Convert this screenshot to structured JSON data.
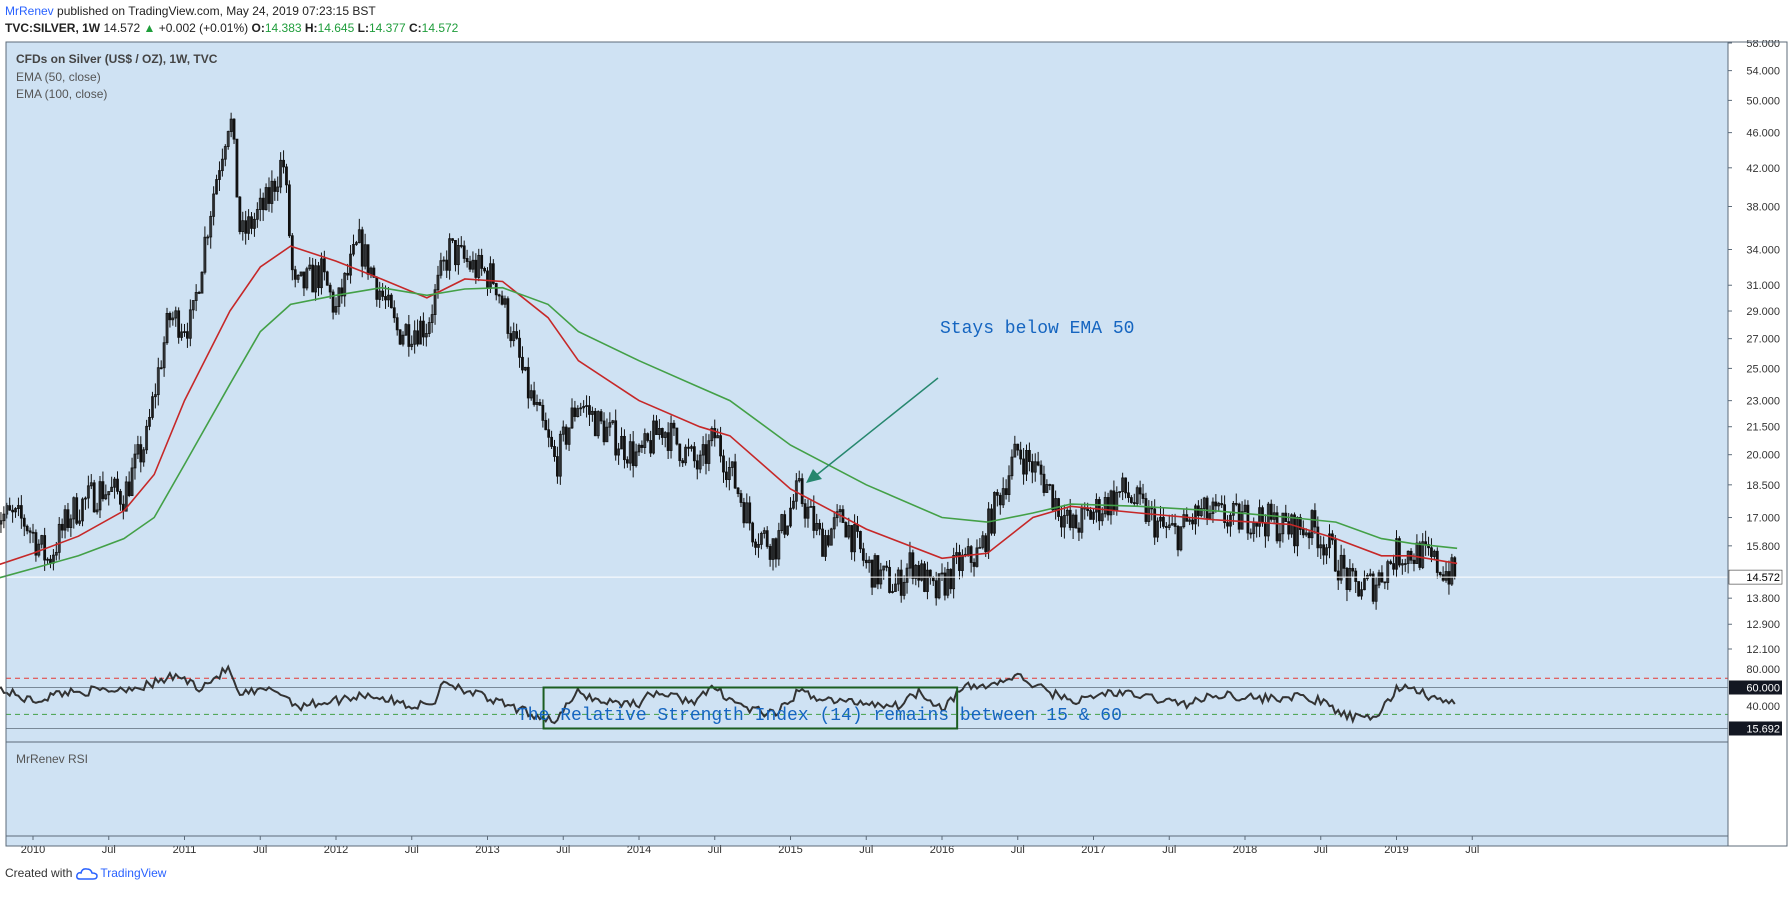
{
  "header": {
    "author": "MrRenev",
    "published": "published on TradingView.com, May 24, 2019 07:23:15 BST",
    "symbol": "TVC:SILVER, 1W",
    "last": "14.572",
    "change": "+0.002 (+0.01%)",
    "o_label": "O:",
    "o": "14.383",
    "h_label": "H:",
    "h": "14.645",
    "l_label": "L:",
    "l": "14.377",
    "c_label": "C:",
    "c": "14.572"
  },
  "legend": {
    "title": "CFDs on Silver (US$ / OZ), 1W, TVC",
    "ema50": "EMA (50, close)",
    "ema100": "EMA (100, close)",
    "rsi": "MrRenev RSI"
  },
  "annotations": {
    "ema_note": "Stays below EMA 50",
    "rsi_note": "The Relative Strength Index (14) remains between 15 & 60"
  },
  "footer": {
    "created_with": "Created with",
    "brand": "TradingView"
  },
  "colors": {
    "background": "#cfe2f3",
    "candles": "#111111",
    "ema50": "#c62828",
    "ema100": "#43a047",
    "annotation_text": "#1565c0",
    "arrow": "#26876e",
    "rsi_line": "#333333",
    "rsi_box": "#1b5e20",
    "upper_band": "#e53935",
    "lower_band": "#43a047"
  },
  "chart_data": {
    "type": "candlestick",
    "price_axis": {
      "scale": "log",
      "ticks": [
        "58.000",
        "54.000",
        "50.000",
        "46.000",
        "42.000",
        "38.000",
        "34.000",
        "31.000",
        "29.000",
        "27.000",
        "25.000",
        "23.000",
        "21.500",
        "20.000",
        "18.500",
        "17.000",
        "15.800",
        "14.572",
        "13.800",
        "12.900",
        "12.100"
      ],
      "current_price": "14.572"
    },
    "time_axis": {
      "labels": [
        "2010",
        "Jul",
        "2011",
        "Jul",
        "2012",
        "Jul",
        "2013",
        "Jul",
        "2014",
        "Jul",
        "2015",
        "Jul",
        "2016",
        "Jul",
        "2017",
        "Jul",
        "2018",
        "Jul",
        "2019",
        "Jul"
      ]
    },
    "price_path": [
      {
        "t": 2009.75,
        "v": 17.2
      },
      {
        "t": 2009.95,
        "v": 16.8
      },
      {
        "t": 2010.1,
        "v": 15.2
      },
      {
        "t": 2010.25,
        "v": 17.2
      },
      {
        "t": 2010.45,
        "v": 18.3
      },
      {
        "t": 2010.6,
        "v": 18.0
      },
      {
        "t": 2010.75,
        "v": 20.8
      },
      {
        "t": 2010.9,
        "v": 28.5
      },
      {
        "t": 2011.05,
        "v": 28.0
      },
      {
        "t": 2011.15,
        "v": 36.0
      },
      {
        "t": 2011.3,
        "v": 48.5
      },
      {
        "t": 2011.37,
        "v": 35.0
      },
      {
        "t": 2011.55,
        "v": 38.5
      },
      {
        "t": 2011.65,
        "v": 43.0
      },
      {
        "t": 2011.72,
        "v": 30.5
      },
      {
        "t": 2011.9,
        "v": 32.0
      },
      {
        "t": 2012.0,
        "v": 29.0
      },
      {
        "t": 2012.15,
        "v": 34.5
      },
      {
        "t": 2012.4,
        "v": 27.5
      },
      {
        "t": 2012.6,
        "v": 28.0
      },
      {
        "t": 2012.75,
        "v": 34.0
      },
      {
        "t": 2012.9,
        "v": 32.5
      },
      {
        "t": 2013.05,
        "v": 31.5
      },
      {
        "t": 2013.25,
        "v": 24.0
      },
      {
        "t": 2013.45,
        "v": 19.5
      },
      {
        "t": 2013.6,
        "v": 23.0
      },
      {
        "t": 2013.75,
        "v": 21.5
      },
      {
        "t": 2014.0,
        "v": 19.8
      },
      {
        "t": 2014.15,
        "v": 21.5
      },
      {
        "t": 2014.4,
        "v": 19.3
      },
      {
        "t": 2014.5,
        "v": 21.0
      },
      {
        "t": 2014.75,
        "v": 16.5
      },
      {
        "t": 2014.9,
        "v": 15.8
      },
      {
        "t": 2015.05,
        "v": 18.2
      },
      {
        "t": 2015.2,
        "v": 16.0
      },
      {
        "t": 2015.35,
        "v": 17.0
      },
      {
        "t": 2015.5,
        "v": 15.0
      },
      {
        "t": 2015.7,
        "v": 14.2
      },
      {
        "t": 2015.8,
        "v": 15.2
      },
      {
        "t": 2015.95,
        "v": 13.9
      },
      {
        "t": 2016.1,
        "v": 15.0
      },
      {
        "t": 2016.25,
        "v": 15.5
      },
      {
        "t": 2016.35,
        "v": 17.5
      },
      {
        "t": 2016.5,
        "v": 20.2
      },
      {
        "t": 2016.65,
        "v": 19.0
      },
      {
        "t": 2016.85,
        "v": 16.5
      },
      {
        "t": 2017.05,
        "v": 17.5
      },
      {
        "t": 2017.2,
        "v": 18.2
      },
      {
        "t": 2017.45,
        "v": 16.5
      },
      {
        "t": 2017.55,
        "v": 16.3
      },
      {
        "t": 2017.7,
        "v": 17.2
      },
      {
        "t": 2017.95,
        "v": 16.9
      },
      {
        "t": 2018.05,
        "v": 17.1
      },
      {
        "t": 2018.3,
        "v": 16.5
      },
      {
        "t": 2018.45,
        "v": 16.6
      },
      {
        "t": 2018.6,
        "v": 15.3
      },
      {
        "t": 2018.7,
        "v": 14.2
      },
      {
        "t": 2018.85,
        "v": 14.3
      },
      {
        "t": 2019.0,
        "v": 15.5
      },
      {
        "t": 2019.15,
        "v": 15.5
      },
      {
        "t": 2019.3,
        "v": 14.9
      },
      {
        "t": 2019.4,
        "v": 14.57
      }
    ],
    "series": [
      {
        "name": "EMA (50, close)",
        "values": [
          {
            "t": 2009.75,
            "v": 15.0
          },
          {
            "t": 2010.0,
            "v": 15.5
          },
          {
            "t": 2010.3,
            "v": 16.2
          },
          {
            "t": 2010.6,
            "v": 17.3
          },
          {
            "t": 2010.8,
            "v": 19.0
          },
          {
            "t": 2011.0,
            "v": 23.0
          },
          {
            "t": 2011.3,
            "v": 29.0
          },
          {
            "t": 2011.5,
            "v": 32.5
          },
          {
            "t": 2011.7,
            "v": 34.3
          },
          {
            "t": 2012.0,
            "v": 33.0
          },
          {
            "t": 2012.3,
            "v": 31.5
          },
          {
            "t": 2012.6,
            "v": 30.0
          },
          {
            "t": 2012.85,
            "v": 31.5
          },
          {
            "t": 2013.1,
            "v": 31.3
          },
          {
            "t": 2013.4,
            "v": 28.5
          },
          {
            "t": 2013.6,
            "v": 25.5
          },
          {
            "t": 2014.0,
            "v": 23.0
          },
          {
            "t": 2014.4,
            "v": 21.5
          },
          {
            "t": 2014.6,
            "v": 21.0
          },
          {
            "t": 2015.0,
            "v": 18.3
          },
          {
            "t": 2015.5,
            "v": 16.5
          },
          {
            "t": 2016.0,
            "v": 15.3
          },
          {
            "t": 2016.3,
            "v": 15.5
          },
          {
            "t": 2016.6,
            "v": 17.0
          },
          {
            "t": 2016.85,
            "v": 17.5
          },
          {
            "t": 2017.3,
            "v": 17.2
          },
          {
            "t": 2017.8,
            "v": 16.9
          },
          {
            "t": 2018.3,
            "v": 16.7
          },
          {
            "t": 2018.6,
            "v": 16.1
          },
          {
            "t": 2018.9,
            "v": 15.4
          },
          {
            "t": 2019.1,
            "v": 15.4
          },
          {
            "t": 2019.4,
            "v": 15.1
          }
        ]
      },
      {
        "name": "EMA (100, close)",
        "values": [
          {
            "t": 2009.75,
            "v": 14.5
          },
          {
            "t": 2010.0,
            "v": 14.9
          },
          {
            "t": 2010.3,
            "v": 15.4
          },
          {
            "t": 2010.6,
            "v": 16.1
          },
          {
            "t": 2010.8,
            "v": 17.0
          },
          {
            "t": 2011.0,
            "v": 19.5
          },
          {
            "t": 2011.3,
            "v": 24.0
          },
          {
            "t": 2011.5,
            "v": 27.5
          },
          {
            "t": 2011.7,
            "v": 29.5
          },
          {
            "t": 2012.0,
            "v": 30.2
          },
          {
            "t": 2012.3,
            "v": 30.8
          },
          {
            "t": 2012.6,
            "v": 30.2
          },
          {
            "t": 2012.85,
            "v": 30.7
          },
          {
            "t": 2013.1,
            "v": 30.8
          },
          {
            "t": 2013.4,
            "v": 29.5
          },
          {
            "t": 2013.6,
            "v": 27.5
          },
          {
            "t": 2014.0,
            "v": 25.5
          },
          {
            "t": 2014.4,
            "v": 23.8
          },
          {
            "t": 2014.6,
            "v": 23.0
          },
          {
            "t": 2015.0,
            "v": 20.5
          },
          {
            "t": 2015.5,
            "v": 18.5
          },
          {
            "t": 2016.0,
            "v": 17.0
          },
          {
            "t": 2016.3,
            "v": 16.8
          },
          {
            "t": 2016.6,
            "v": 17.2
          },
          {
            "t": 2016.85,
            "v": 17.6
          },
          {
            "t": 2017.3,
            "v": 17.5
          },
          {
            "t": 2017.8,
            "v": 17.3
          },
          {
            "t": 2018.3,
            "v": 17.0
          },
          {
            "t": 2018.6,
            "v": 16.8
          },
          {
            "t": 2018.9,
            "v": 16.1
          },
          {
            "t": 2019.1,
            "v": 15.9
          },
          {
            "t": 2019.4,
            "v": 15.7
          }
        ]
      }
    ],
    "rsi": {
      "axis_ticks": [
        "80.000",
        "60.000",
        "40.000",
        "15.692"
      ],
      "upper_band": 70,
      "lower_band": 31,
      "box_from": 2013.37,
      "box_to": 2016.1,
      "path": [
        {
          "t": 2009.75,
          "v": 60
        },
        {
          "t": 2010.0,
          "v": 45
        },
        {
          "t": 2010.2,
          "v": 55
        },
        {
          "t": 2010.5,
          "v": 57
        },
        {
          "t": 2010.75,
          "v": 62
        },
        {
          "t": 2010.95,
          "v": 73
        },
        {
          "t": 2011.1,
          "v": 60
        },
        {
          "t": 2011.3,
          "v": 81
        },
        {
          "t": 2011.35,
          "v": 52
        },
        {
          "t": 2011.6,
          "v": 58
        },
        {
          "t": 2011.75,
          "v": 40
        },
        {
          "t": 2012.0,
          "v": 46
        },
        {
          "t": 2012.2,
          "v": 53
        },
        {
          "t": 2012.5,
          "v": 40
        },
        {
          "t": 2012.65,
          "v": 42
        },
        {
          "t": 2012.7,
          "v": 68
        },
        {
          "t": 2012.85,
          "v": 58
        },
        {
          "t": 2013.0,
          "v": 48
        },
        {
          "t": 2013.2,
          "v": 36
        },
        {
          "t": 2013.45,
          "v": 24
        },
        {
          "t": 2013.6,
          "v": 55
        },
        {
          "t": 2013.75,
          "v": 45
        },
        {
          "t": 2014.0,
          "v": 43
        },
        {
          "t": 2014.1,
          "v": 55
        },
        {
          "t": 2014.35,
          "v": 45
        },
        {
          "t": 2014.5,
          "v": 59
        },
        {
          "t": 2014.7,
          "v": 38
        },
        {
          "t": 2014.9,
          "v": 30
        },
        {
          "t": 2015.05,
          "v": 55
        },
        {
          "t": 2015.3,
          "v": 45
        },
        {
          "t": 2015.5,
          "v": 44
        },
        {
          "t": 2015.7,
          "v": 40
        },
        {
          "t": 2015.85,
          "v": 56
        },
        {
          "t": 2016.0,
          "v": 38
        },
        {
          "t": 2016.15,
          "v": 60
        },
        {
          "t": 2016.3,
          "v": 62
        },
        {
          "t": 2016.5,
          "v": 72
        },
        {
          "t": 2016.7,
          "v": 55
        },
        {
          "t": 2016.9,
          "v": 45
        },
        {
          "t": 2017.1,
          "v": 55
        },
        {
          "t": 2017.35,
          "v": 50
        },
        {
          "t": 2017.6,
          "v": 42
        },
        {
          "t": 2017.85,
          "v": 53
        },
        {
          "t": 2018.1,
          "v": 48
        },
        {
          "t": 2018.35,
          "v": 50
        },
        {
          "t": 2018.5,
          "v": 45
        },
        {
          "t": 2018.65,
          "v": 30
        },
        {
          "t": 2018.8,
          "v": 25
        },
        {
          "t": 2018.9,
          "v": 35
        },
        {
          "t": 2019.0,
          "v": 58
        },
        {
          "t": 2019.1,
          "v": 62
        },
        {
          "t": 2019.2,
          "v": 50
        },
        {
          "t": 2019.33,
          "v": 45
        },
        {
          "t": 2019.4,
          "v": 40
        }
      ]
    }
  }
}
